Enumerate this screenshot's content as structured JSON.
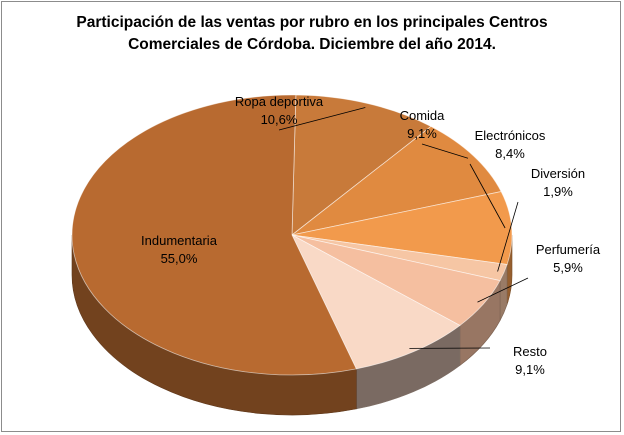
{
  "chart_data": {
    "type": "pie",
    "title_lines": [
      "Participación de las ventas por rubro en los principales Centros",
      "Comerciales de Córdoba.  Diciembre del año 2014."
    ],
    "legend": "none",
    "slices": [
      {
        "name": "Ropa deportiva",
        "value": 10.6,
        "label": "10,6%",
        "color": "#c87a3a"
      },
      {
        "name": "Comida",
        "value": 9.1,
        "label": "9,1%",
        "color": "#e08a40"
      },
      {
        "name": "Electrónicos",
        "value": 8.4,
        "label": "8,4%",
        "color": "#f29a4c"
      },
      {
        "name": "Diversión",
        "value": 1.9,
        "label": "1,9%",
        "color": "#f6c6a4"
      },
      {
        "name": "Perfumería",
        "value": 5.9,
        "label": "5,9%",
        "color": "#f5bfa0"
      },
      {
        "name": "Resto",
        "value": 9.1,
        "label": "9,1%",
        "color": "#f9d9c6"
      },
      {
        "name": "Indumentaria",
        "value": 55.0,
        "label": "55,0%",
        "color": "#b86a30"
      }
    ]
  }
}
